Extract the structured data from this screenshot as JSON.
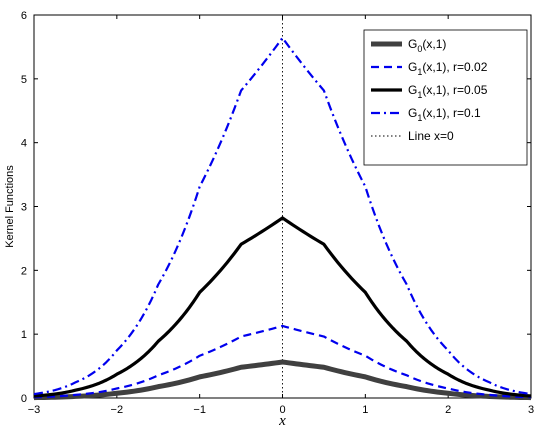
{
  "chart_data": {
    "type": "line",
    "xlabel": "x",
    "ylabel": "Kernel Functions",
    "xlim": [
      -3,
      3
    ],
    "ylim": [
      0,
      6
    ],
    "xticks": [
      "−3",
      "−2",
      "−1",
      "0",
      "1",
      "2",
      "3"
    ],
    "yticks": [
      "0",
      "1",
      "2",
      "3",
      "4",
      "5",
      "6"
    ],
    "grid": false,
    "legend_position": "top-right",
    "x": [
      -3,
      -2.5,
      -2,
      -1.5,
      -1,
      -0.5,
      0,
      0.5,
      1,
      1.5,
      2,
      2.5,
      3
    ],
    "series": [
      {
        "name": "G0(x,1)",
        "legend_main": "G",
        "legend_sub": "0",
        "legend_rest": "(x,1)",
        "color": "#404040",
        "style": "solid",
        "width": 5,
        "values": [
          0.0062,
          0.0244,
          0.0745,
          0.1778,
          0.3311,
          0.4816,
          0.5642,
          0.4816,
          0.3311,
          0.1778,
          0.0745,
          0.0244,
          0.0062
        ]
      },
      {
        "name": "G1(x,1), r=0.02",
        "legend_main": "G",
        "legend_sub": "1",
        "legend_rest": "(x,1), r=0.02",
        "color": "#0000ee",
        "style": "dash",
        "width": 2.2,
        "values": [
          0.0125,
          0.0488,
          0.149,
          0.3556,
          0.6622,
          0.9632,
          1.1284,
          0.9632,
          0.6622,
          0.3556,
          0.149,
          0.0488,
          0.0125
        ]
      },
      {
        "name": "G1(x,1), r=0.05",
        "legend_main": "G",
        "legend_sub": "1",
        "legend_rest": "(x,1), r=0.05",
        "color": "#000000",
        "style": "solid",
        "width": 3.2,
        "values": [
          0.0311,
          0.122,
          0.3725,
          0.889,
          1.6555,
          2.408,
          2.821,
          2.408,
          1.6555,
          0.889,
          0.3725,
          0.122,
          0.0311
        ]
      },
      {
        "name": "G1(x,1), r=0.1",
        "legend_main": "G",
        "legend_sub": "1",
        "legend_rest": "(x,1), r=0.1",
        "color": "#0000ee",
        "style": "dashdot",
        "width": 2.2,
        "values": [
          0.0622,
          0.244,
          0.745,
          1.778,
          3.311,
          4.816,
          5.642,
          4.816,
          3.311,
          1.778,
          0.745,
          0.244,
          0.0622
        ]
      }
    ],
    "reference_line": {
      "name": "Line x=0",
      "x": 0,
      "color": "#000000",
      "style": "dotted"
    }
  }
}
